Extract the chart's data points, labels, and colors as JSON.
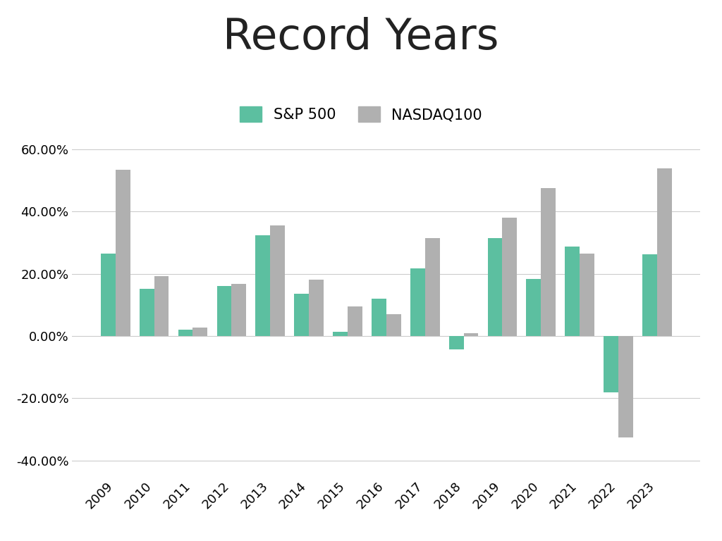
{
  "years": [
    2009,
    2010,
    2011,
    2012,
    2013,
    2014,
    2015,
    2016,
    2017,
    2018,
    2019,
    2020,
    2021,
    2022,
    2023
  ],
  "sp500": [
    26.5,
    15.1,
    2.1,
    16.0,
    32.4,
    13.7,
    1.4,
    12.0,
    21.8,
    -4.4,
    31.5,
    18.4,
    28.7,
    -18.1,
    26.3
  ],
  "nasdaq100": [
    53.5,
    19.2,
    2.7,
    16.8,
    35.5,
    18.1,
    9.5,
    7.0,
    31.5,
    1.0,
    38.0,
    47.6,
    26.6,
    -32.6,
    53.8
  ],
  "sp500_color": "#5cbfa0",
  "nasdaq100_color": "#b0b0b0",
  "title": "Record Years",
  "title_fontsize": 44,
  "background_color": "#ffffff",
  "ylim": [
    -45,
    68
  ],
  "yticks": [
    -40,
    -20,
    0,
    20,
    40,
    60
  ],
  "legend_fontsize": 15,
  "tick_fontsize": 13,
  "bar_width": 0.38,
  "grid_color": "#cccccc"
}
